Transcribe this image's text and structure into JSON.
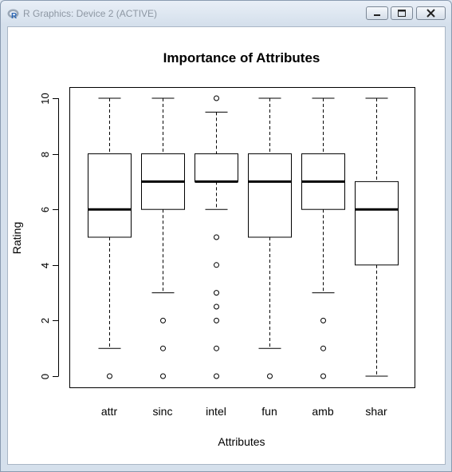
{
  "window": {
    "title": "R Graphics: Device 2 (ACTIVE)",
    "app_icon": "r-logo-icon",
    "buttons": {
      "minimize": "minimize-icon",
      "maximize": "maximize-icon",
      "close": "close-icon"
    }
  },
  "chart_data": {
    "type": "boxplot",
    "title": "Importance of Attributes",
    "xlabel": "Attributes",
    "ylabel": "Rating",
    "ylim": [
      0,
      10
    ],
    "yticks": [
      0,
      2,
      4,
      6,
      8,
      10
    ],
    "categories": [
      "attr",
      "sinc",
      "intel",
      "fun",
      "amb",
      "shar"
    ],
    "boxes": [
      {
        "name": "attr",
        "whisker_low": 1,
        "q1": 5,
        "median": 6,
        "q3": 8,
        "whisker_high": 10,
        "outliers": [
          0
        ]
      },
      {
        "name": "sinc",
        "whisker_low": 3,
        "q1": 6,
        "median": 7,
        "q3": 8,
        "whisker_high": 10,
        "outliers": [
          0,
          1,
          2
        ]
      },
      {
        "name": "intel",
        "whisker_low": 6,
        "q1": 7,
        "median": 7,
        "q3": 8,
        "whisker_high": 9.5,
        "outliers": [
          0,
          1,
          2,
          2.5,
          3,
          4,
          5,
          10
        ]
      },
      {
        "name": "fun",
        "whisker_low": 1,
        "q1": 5,
        "median": 7,
        "q3": 8,
        "whisker_high": 10,
        "outliers": [
          0
        ]
      },
      {
        "name": "amb",
        "whisker_low": 3,
        "q1": 6,
        "median": 7,
        "q3": 8,
        "whisker_high": 10,
        "outliers": [
          0,
          1,
          2
        ]
      },
      {
        "name": "shar",
        "whisker_low": 0,
        "q1": 4,
        "median": 6,
        "q3": 7,
        "whisker_high": 10,
        "outliers": []
      }
    ]
  }
}
